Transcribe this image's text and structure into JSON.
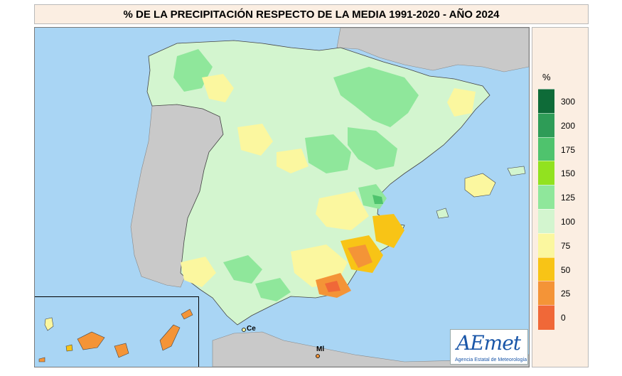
{
  "title": "% DE LA PRECIPITACIÓN RESPECTO DE LA MEDIA 1991-2020 - AÑO 2024",
  "legend": {
    "unit": "%",
    "classes": [
      {
        "label": "300",
        "color": "#0e6b38"
      },
      {
        "label": "200",
        "color": "#2e9c57"
      },
      {
        "label": "175",
        "color": "#4fc36d"
      },
      {
        "label": "150",
        "color": "#92e21f"
      },
      {
        "label": "125",
        "color": "#8fe79b"
      },
      {
        "label": "100",
        "color": "#d3f5cf"
      },
      {
        "label": "75",
        "color": "#fbf79f"
      },
      {
        "label": "50",
        "color": "#f8c416"
      },
      {
        "label": "25",
        "color": "#f49437"
      },
      {
        "label": "0",
        "color": "#f06838"
      }
    ],
    "bottom_color": "#f06838"
  },
  "map": {
    "sea_color": "#a9d5f4",
    "foreign_land_color": "#c9c9c9",
    "cities": [
      {
        "label": "Ce"
      },
      {
        "label": "Ml"
      }
    ]
  },
  "logo": {
    "main": "AEmet",
    "sub": "Agencia Estatal de Meteorología"
  }
}
